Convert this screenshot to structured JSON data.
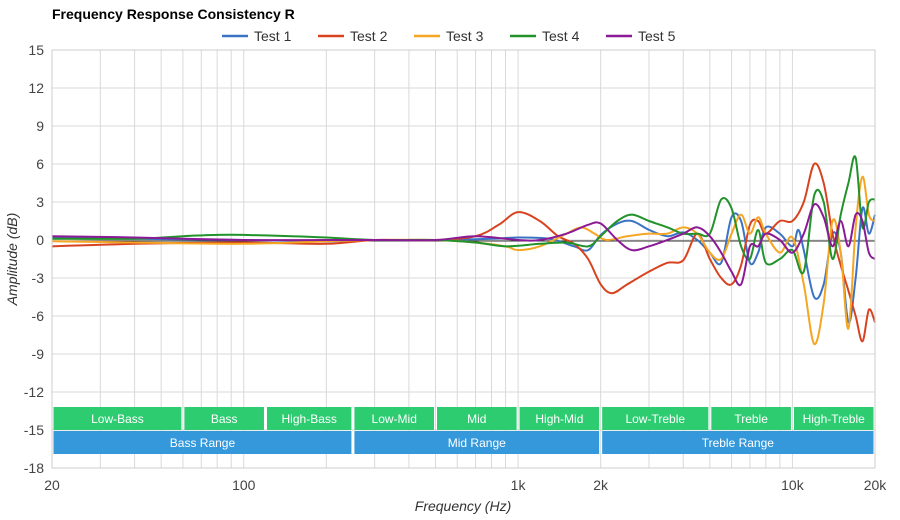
{
  "chart_data": {
    "type": "line",
    "title": "Frequency Response Consistency R",
    "xlabel": "Frequency (Hz)",
    "ylabel": "Amplitude (dB)",
    "xscale": "log",
    "xlim": [
      20,
      20000
    ],
    "ylim": [
      -18,
      15
    ],
    "grid": true,
    "legend_position": "top",
    "x_ticks": [
      {
        "value": 20,
        "label": "20"
      },
      {
        "value": 100,
        "label": "100"
      },
      {
        "value": 1000,
        "label": "1k"
      },
      {
        "value": 2000,
        "label": "2k"
      },
      {
        "value": 10000,
        "label": "10k"
      },
      {
        "value": 20000,
        "label": "20k"
      }
    ],
    "y_ticks": [
      15,
      12,
      9,
      6,
      3,
      0,
      -3,
      -6,
      -9,
      -12,
      -15,
      -18
    ],
    "series": [
      {
        "name": "Test 1",
        "color": "#3b73c4",
        "points": [
          [
            20,
            0.2
          ],
          [
            40,
            0.1
          ],
          [
            100,
            0.0
          ],
          [
            200,
            -0.1
          ],
          [
            300,
            0.0
          ],
          [
            500,
            0.0
          ],
          [
            800,
            0.1
          ],
          [
            1000,
            0.2
          ],
          [
            1300,
            0.1
          ],
          [
            1600,
            -0.5
          ],
          [
            1800,
            -0.8
          ],
          [
            2000,
            0.4
          ],
          [
            2300,
            1.3
          ],
          [
            2600,
            1.5
          ],
          [
            3000,
            0.8
          ],
          [
            3500,
            0.3
          ],
          [
            4000,
            0.6
          ],
          [
            4500,
            0.0
          ],
          [
            5000,
            -1.0
          ],
          [
            5500,
            -1.8
          ],
          [
            6000,
            1.8
          ],
          [
            6500,
            1.5
          ],
          [
            7000,
            -1.8
          ],
          [
            7500,
            -1.0
          ],
          [
            8000,
            1.0
          ],
          [
            9000,
            0.5
          ],
          [
            10000,
            -0.5
          ],
          [
            10500,
            0.8
          ],
          [
            11000,
            -0.8
          ],
          [
            12000,
            -4.5
          ],
          [
            13000,
            -3.5
          ],
          [
            14000,
            0.5
          ],
          [
            15000,
            -1.0
          ],
          [
            16000,
            -6.5
          ],
          [
            17000,
            -3.0
          ],
          [
            18000,
            2.5
          ],
          [
            19000,
            0.5
          ],
          [
            20000,
            2.0
          ]
        ]
      },
      {
        "name": "Test 2",
        "color": "#d8431f",
        "points": [
          [
            20,
            -0.5
          ],
          [
            40,
            -0.3
          ],
          [
            100,
            -0.2
          ],
          [
            200,
            -0.3
          ],
          [
            300,
            0.0
          ],
          [
            500,
            0.0
          ],
          [
            700,
            0.3
          ],
          [
            850,
            1.2
          ],
          [
            1000,
            2.2
          ],
          [
            1200,
            1.5
          ],
          [
            1400,
            0.3
          ],
          [
            1600,
            -0.3
          ],
          [
            1800,
            -1.5
          ],
          [
            2000,
            -3.5
          ],
          [
            2200,
            -4.2
          ],
          [
            2500,
            -3.5
          ],
          [
            3000,
            -2.5
          ],
          [
            3500,
            -1.8
          ],
          [
            4000,
            -1.6
          ],
          [
            4500,
            0.5
          ],
          [
            5000,
            -1.5
          ],
          [
            5500,
            -3.0
          ],
          [
            6000,
            -3.5
          ],
          [
            6500,
            -2.0
          ],
          [
            7000,
            1.2
          ],
          [
            7500,
            1.5
          ],
          [
            8000,
            0.5
          ],
          [
            9000,
            1.5
          ],
          [
            10000,
            1.5
          ],
          [
            11000,
            3.0
          ],
          [
            12000,
            6.0
          ],
          [
            13000,
            4.5
          ],
          [
            14000,
            0.5
          ],
          [
            15000,
            -2.0
          ],
          [
            16000,
            -4.0
          ],
          [
            17000,
            -6.0
          ],
          [
            18000,
            -8.0
          ],
          [
            19000,
            -5.5
          ],
          [
            20000,
            -6.5
          ]
        ]
      },
      {
        "name": "Test 3",
        "color": "#f5a623",
        "points": [
          [
            20,
            -0.1
          ],
          [
            40,
            -0.2
          ],
          [
            100,
            -0.3
          ],
          [
            200,
            -0.1
          ],
          [
            300,
            0.0
          ],
          [
            500,
            0.0
          ],
          [
            700,
            -0.2
          ],
          [
            900,
            -0.5
          ],
          [
            1000,
            -0.8
          ],
          [
            1200,
            -0.5
          ],
          [
            1500,
            0.5
          ],
          [
            1700,
            1.0
          ],
          [
            1900,
            0.5
          ],
          [
            2100,
            0.0
          ],
          [
            2500,
            0.3
          ],
          [
            3000,
            0.5
          ],
          [
            3500,
            0.5
          ],
          [
            4000,
            1.0
          ],
          [
            4500,
            0.5
          ],
          [
            5000,
            -1.0
          ],
          [
            5500,
            -1.5
          ],
          [
            6000,
            0.5
          ],
          [
            6500,
            2.0
          ],
          [
            7000,
            0.5
          ],
          [
            7500,
            1.8
          ],
          [
            8000,
            0.5
          ],
          [
            9000,
            -1.0
          ],
          [
            10000,
            0.2
          ],
          [
            11000,
            -3.5
          ],
          [
            12000,
            -8.2
          ],
          [
            13000,
            -5.0
          ],
          [
            14000,
            1.5
          ],
          [
            15000,
            -1.0
          ],
          [
            16000,
            -7.0
          ],
          [
            17000,
            1.0
          ],
          [
            18000,
            5.0
          ],
          [
            19000,
            2.0
          ],
          [
            20000,
            1.5
          ]
        ]
      },
      {
        "name": "Test 4",
        "color": "#22922b",
        "points": [
          [
            20,
            0.1
          ],
          [
            40,
            0.1
          ],
          [
            60,
            0.3
          ],
          [
            80,
            0.4
          ],
          [
            100,
            0.4
          ],
          [
            150,
            0.3
          ],
          [
            200,
            0.2
          ],
          [
            300,
            0.0
          ],
          [
            500,
            0.0
          ],
          [
            700,
            -0.2
          ],
          [
            900,
            -0.5
          ],
          [
            1200,
            -0.3
          ],
          [
            1500,
            -0.2
          ],
          [
            1800,
            -0.5
          ],
          [
            2000,
            0.3
          ],
          [
            2300,
            1.5
          ],
          [
            2600,
            2.0
          ],
          [
            3000,
            1.5
          ],
          [
            3500,
            1.0
          ],
          [
            4000,
            0.5
          ],
          [
            4500,
            0.5
          ],
          [
            5000,
            0.5
          ],
          [
            5500,
            3.2
          ],
          [
            6000,
            2.5
          ],
          [
            6500,
            -0.5
          ],
          [
            7000,
            -1.5
          ],
          [
            7500,
            0.8
          ],
          [
            8000,
            -1.8
          ],
          [
            9000,
            -1.5
          ],
          [
            10000,
            -0.8
          ],
          [
            11000,
            -2.5
          ],
          [
            12000,
            3.5
          ],
          [
            13000,
            3.0
          ],
          [
            14000,
            -1.5
          ],
          [
            15000,
            2.0
          ],
          [
            16000,
            4.5
          ],
          [
            17000,
            6.5
          ],
          [
            18000,
            1.0
          ],
          [
            19000,
            3.0
          ],
          [
            20000,
            3.2
          ]
        ]
      },
      {
        "name": "Test 5",
        "color": "#8b1a96",
        "points": [
          [
            20,
            0.3
          ],
          [
            40,
            0.2
          ],
          [
            100,
            0.0
          ],
          [
            200,
            0.0
          ],
          [
            300,
            0.0
          ],
          [
            500,
            0.0
          ],
          [
            700,
            0.3
          ],
          [
            1000,
            0.0
          ],
          [
            1200,
            0.0
          ],
          [
            1500,
            0.5
          ],
          [
            1800,
            1.2
          ],
          [
            2000,
            1.3
          ],
          [
            2300,
            0.0
          ],
          [
            2600,
            -0.8
          ],
          [
            3000,
            -0.5
          ],
          [
            3500,
            0.0
          ],
          [
            4000,
            0.5
          ],
          [
            4500,
            1.0
          ],
          [
            5000,
            0.3
          ],
          [
            5500,
            -1.0
          ],
          [
            6000,
            -2.5
          ],
          [
            6500,
            -3.5
          ],
          [
            7000,
            -0.5
          ],
          [
            7500,
            -0.5
          ],
          [
            8000,
            0.5
          ],
          [
            9000,
            0.0
          ],
          [
            10000,
            -1.0
          ],
          [
            11000,
            0.5
          ],
          [
            12000,
            2.8
          ],
          [
            13000,
            1.8
          ],
          [
            14000,
            -0.5
          ],
          [
            15000,
            1.5
          ],
          [
            16000,
            -0.5
          ],
          [
            17000,
            2.0
          ],
          [
            18000,
            1.5
          ],
          [
            19000,
            -1.0
          ],
          [
            20000,
            -1.5
          ]
        ]
      }
    ],
    "bands": [
      {
        "label": "Low-Bass",
        "from": 20,
        "to": 60,
        "row": 1
      },
      {
        "label": "Bass",
        "from": 60,
        "to": 120,
        "row": 1
      },
      {
        "label": "High-Bass",
        "from": 120,
        "to": 250,
        "row": 1
      },
      {
        "label": "Low-Mid",
        "from": 250,
        "to": 500,
        "row": 1
      },
      {
        "label": "Mid",
        "from": 500,
        "to": 1000,
        "row": 1
      },
      {
        "label": "High-Mid",
        "from": 1000,
        "to": 2000,
        "row": 1
      },
      {
        "label": "Low-Treble",
        "from": 2000,
        "to": 5000,
        "row": 1
      },
      {
        "label": "Treble",
        "from": 5000,
        "to": 10000,
        "row": 1
      },
      {
        "label": "High-Treble",
        "from": 10000,
        "to": 20000,
        "row": 1
      },
      {
        "label": "Bass Range",
        "from": 20,
        "to": 250,
        "row": 2
      },
      {
        "label": "Mid Range",
        "from": 250,
        "to": 2000,
        "row": 2
      },
      {
        "label": "Treble Range",
        "from": 2000,
        "to": 20000,
        "row": 2
      }
    ],
    "band_colors": {
      "row1": "#2ecc71",
      "row2": "#3498db"
    }
  }
}
